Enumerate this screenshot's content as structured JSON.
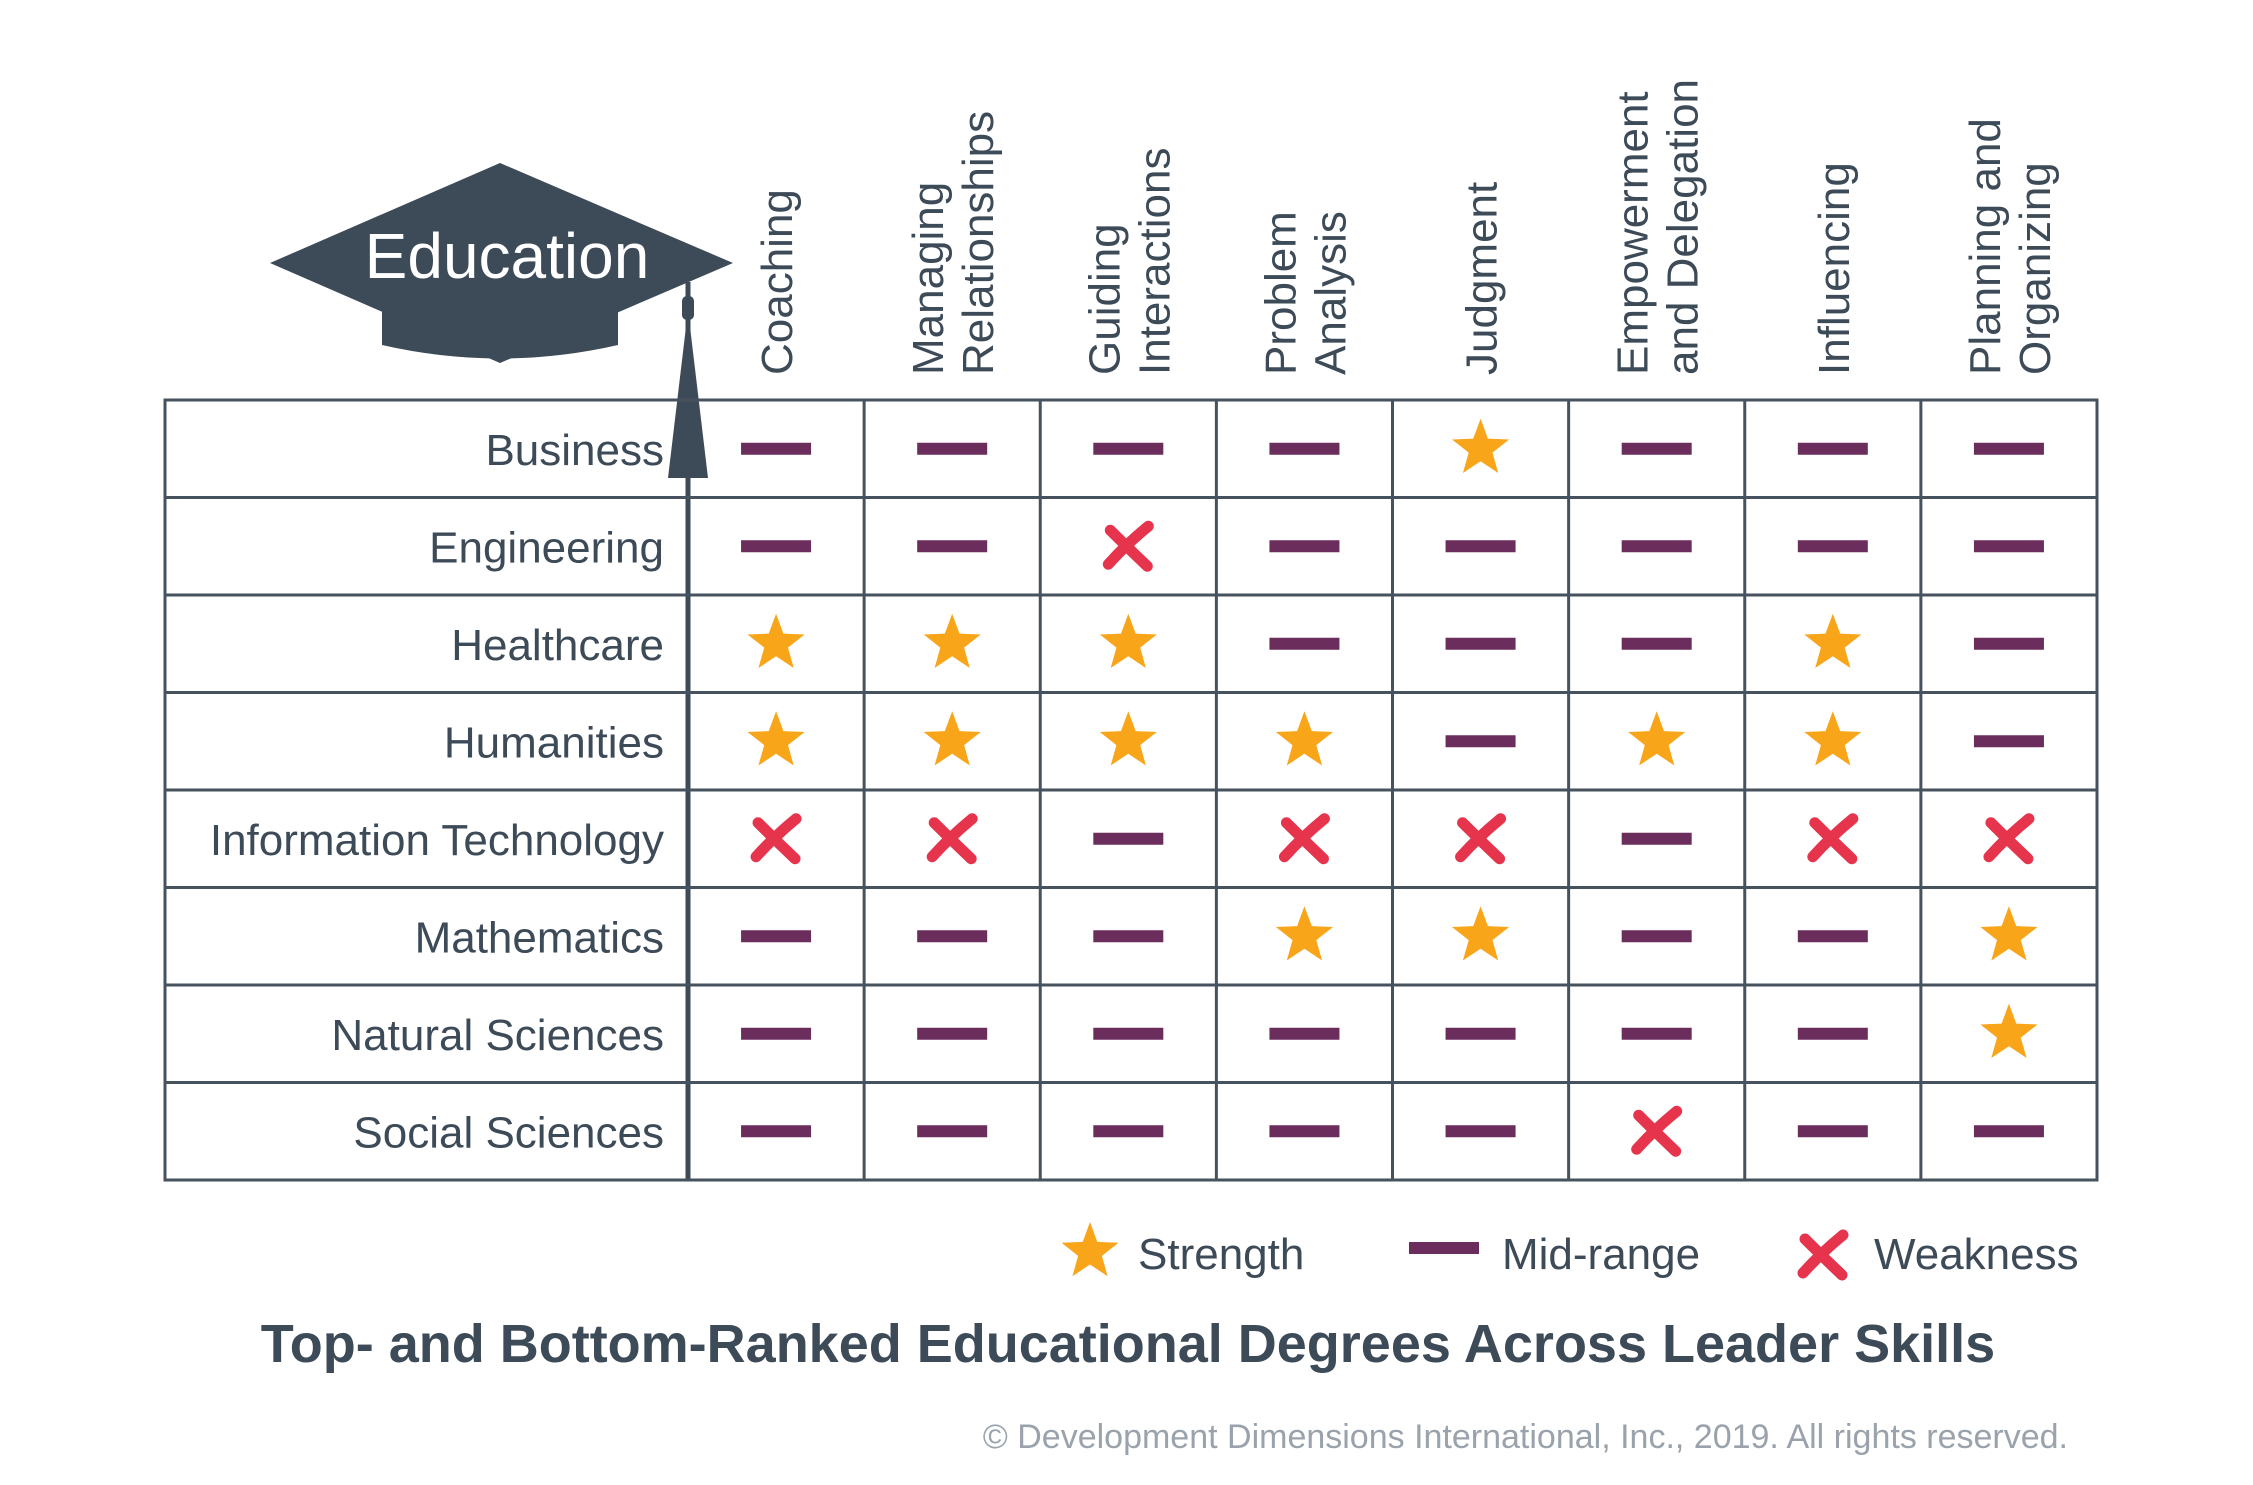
{
  "cap_label": "Education",
  "chart_data": {
    "type": "table",
    "title": "Top- and Bottom-Ranked Educational Degrees Across Leader Skills",
    "columns": [
      [
        "Coaching"
      ],
      [
        "Managing",
        "Relationships"
      ],
      [
        "Guiding",
        "Interactions"
      ],
      [
        "Problem",
        "Analysis"
      ],
      [
        "Judgment"
      ],
      [
        "Empowerment",
        "and Delegation"
      ],
      [
        "Influencing"
      ],
      [
        "Planning and",
        "Organizing"
      ]
    ],
    "rows": [
      "Business",
      "Engineering",
      "Healthcare",
      "Humanities",
      "Information Technology",
      "Mathematics",
      "Natural Sciences",
      "Social Sciences"
    ],
    "values": [
      [
        "mid",
        "mid",
        "mid",
        "mid",
        "strength",
        "mid",
        "mid",
        "mid"
      ],
      [
        "mid",
        "mid",
        "weakness",
        "mid",
        "mid",
        "mid",
        "mid",
        "mid"
      ],
      [
        "strength",
        "strength",
        "strength",
        "mid",
        "mid",
        "mid",
        "strength",
        "mid"
      ],
      [
        "strength",
        "strength",
        "strength",
        "strength",
        "mid",
        "strength",
        "strength",
        "mid"
      ],
      [
        "weakness",
        "weakness",
        "mid",
        "weakness",
        "weakness",
        "mid",
        "weakness",
        "weakness"
      ],
      [
        "mid",
        "mid",
        "mid",
        "strength",
        "strength",
        "mid",
        "mid",
        "strength"
      ],
      [
        "mid",
        "mid",
        "mid",
        "mid",
        "mid",
        "mid",
        "mid",
        "strength"
      ],
      [
        "mid",
        "mid",
        "mid",
        "mid",
        "mid",
        "weakness",
        "mid",
        "mid"
      ]
    ],
    "legend": [
      {
        "key": "strength",
        "label": "Strength"
      },
      {
        "key": "mid",
        "label": "Mid-range"
      },
      {
        "key": "weakness",
        "label": "Weakness"
      }
    ],
    "legend_position": "bottom-right",
    "colors": {
      "strength": "#f9a51a",
      "mid": "#6b2d5b",
      "weakness": "#e5344b",
      "grid": "#46535e",
      "cap": "#3d4a57"
    }
  },
  "copyright": "© Development Dimensions International, Inc., 2019. All rights reserved."
}
